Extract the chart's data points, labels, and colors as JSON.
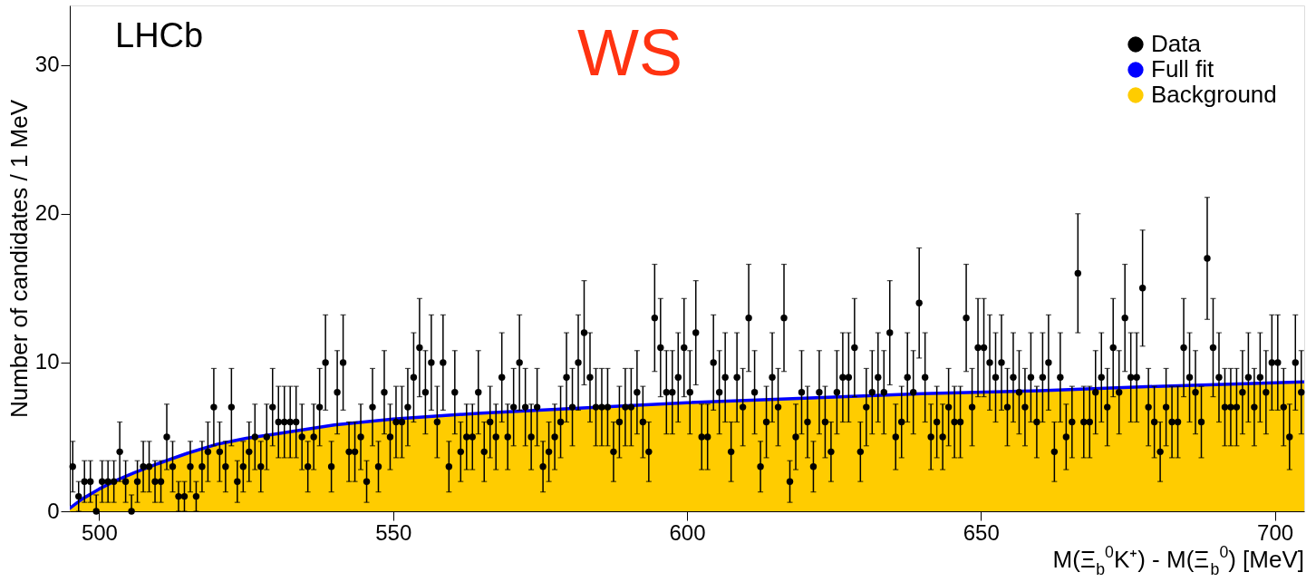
{
  "chart_data": {
    "type": "scatter",
    "xlabel": "M(Ξ$_{b}$$^{0}$K⁺) - M(Ξ$_{b}$$^{0}$) [MeV]",
    "ylabel": "Number of candidates / 1 MeV",
    "annotations": [
      "LHCb",
      "WS"
    ],
    "xlim": [
      495,
      705
    ],
    "xticks": [
      500,
      550,
      600,
      650,
      700
    ],
    "ylim": [
      0,
      34
    ],
    "yticks": [
      0,
      10,
      20,
      30
    ],
    "grid": false,
    "legend": "top right",
    "series": [
      {
        "name": "Data",
        "color": "#000000",
        "marker": "circle",
        "x": [
          495.5,
          496.5,
          497.5,
          498.5,
          499.5,
          500.5,
          501.5,
          502.5,
          503.5,
          504.5,
          505.5,
          506.5,
          507.5,
          508.5,
          509.5,
          510.5,
          511.5,
          512.5,
          513.5,
          514.5,
          515.5,
          516.5,
          517.5,
          518.5,
          519.5,
          520.5,
          521.5,
          522.5,
          523.5,
          524.5,
          525.5,
          526.5,
          527.5,
          528.5,
          529.5,
          530.5,
          531.5,
          532.5,
          533.5,
          534.5,
          535.5,
          536.5,
          537.5,
          538.5,
          539.5,
          540.5,
          541.5,
          542.5,
          543.5,
          544.5,
          545.5,
          546.5,
          547.5,
          548.5,
          549.5,
          550.5,
          551.5,
          552.5,
          553.5,
          554.5,
          555.5,
          556.5,
          557.5,
          558.5,
          559.5,
          560.5,
          561.5,
          562.5,
          563.5,
          564.5,
          565.5,
          566.5,
          567.5,
          568.5,
          569.5,
          570.5,
          571.5,
          572.5,
          573.5,
          574.5,
          575.5,
          576.5,
          577.5,
          578.5,
          579.5,
          580.5,
          581.5,
          582.5,
          583.5,
          584.5,
          585.5,
          586.5,
          587.5,
          588.5,
          589.5,
          590.5,
          591.5,
          592.5,
          593.5,
          594.5,
          595.5,
          596.5,
          597.5,
          598.5,
          599.5,
          600.5,
          601.5,
          602.5,
          603.5,
          604.5,
          605.5,
          606.5,
          607.5,
          608.5,
          609.5,
          610.5,
          611.5,
          612.5,
          613.5,
          614.5,
          615.5,
          616.5,
          617.5,
          618.5,
          619.5,
          620.5,
          621.5,
          622.5,
          623.5,
          624.5,
          625.5,
          626.5,
          627.5,
          628.5,
          629.5,
          630.5,
          631.5,
          632.5,
          633.5,
          634.5,
          635.5,
          636.5,
          637.5,
          638.5,
          639.5,
          640.5,
          641.5,
          642.5,
          643.5,
          644.5,
          645.5,
          646.5,
          647.5,
          648.5,
          649.5,
          650.5,
          651.5,
          652.5,
          653.5,
          654.5,
          655.5,
          656.5,
          657.5,
          658.5,
          659.5,
          660.5,
          661.5,
          662.5,
          663.5,
          664.5,
          665.5,
          666.5,
          667.5,
          668.5,
          669.5,
          670.5,
          671.5,
          672.5,
          673.5,
          674.5,
          675.5,
          676.5,
          677.5,
          678.5,
          679.5,
          680.5,
          681.5,
          682.5,
          683.5,
          684.5,
          685.5,
          686.5,
          687.5,
          688.5,
          689.5,
          690.5,
          691.5,
          692.5,
          693.5,
          694.5,
          695.5,
          696.5,
          697.5,
          698.5,
          699.5,
          700.5,
          701.5,
          702.5,
          703.5,
          704.5
        ],
        "values": [
          3,
          1,
          2,
          2,
          0,
          2,
          2,
          2,
          4,
          2,
          0,
          2,
          3,
          3,
          2,
          2,
          5,
          3,
          1,
          1,
          3,
          1,
          3,
          4,
          7,
          4,
          3,
          7,
          2,
          3,
          4,
          5,
          3,
          5,
          7,
          6,
          6,
          6,
          6,
          5,
          3,
          5,
          7,
          10,
          3,
          8,
          10,
          4,
          4,
          5,
          2,
          7,
          3,
          8,
          5,
          6,
          6,
          7,
          9,
          11,
          8,
          10,
          6,
          10,
          3,
          8,
          4,
          5,
          5,
          8,
          4,
          6,
          5,
          9,
          5,
          7,
          10,
          7,
          5,
          7,
          3,
          4,
          5,
          6,
          9,
          7,
          10,
          12,
          9,
          7,
          7,
          7,
          4,
          6,
          7,
          7,
          8,
          6,
          4,
          13,
          11,
          8,
          8,
          9,
          11,
          8,
          12,
          5,
          5,
          10,
          8,
          9,
          4,
          9,
          7,
          13,
          8,
          3,
          6,
          9,
          7,
          13,
          2,
          5,
          8,
          6,
          3,
          8,
          6,
          4,
          8,
          9,
          9,
          11,
          4,
          7,
          8,
          9,
          8,
          12,
          5,
          6,
          9,
          8,
          14,
          9,
          5,
          6,
          5,
          7,
          6,
          6,
          13,
          7,
          11,
          11,
          10,
          9,
          10,
          7,
          9,
          8,
          7,
          9,
          6,
          9,
          10,
          4,
          9,
          5,
          6,
          16,
          6,
          6,
          8,
          9,
          7,
          11,
          8,
          13,
          9,
          9,
          15,
          7,
          6,
          4,
          7,
          6,
          6,
          11,
          9,
          8,
          6,
          17,
          11,
          9,
          7,
          7,
          7,
          8,
          9,
          7,
          9,
          8,
          10,
          10,
          7,
          5,
          10,
          8
        ],
        "errors": [
          1.7,
          1,
          1.4,
          1.4,
          [
            0,
            1.1
          ],
          1.4,
          1.4,
          1.4,
          2,
          1.4,
          [
            0,
            1.1
          ],
          1.4,
          1.7,
          1.7,
          1.4,
          1.4,
          2.2,
          1.7,
          1,
          1,
          1.7,
          1,
          1.7,
          2,
          2.6,
          2,
          1.7,
          2.6,
          1.4,
          1.7,
          2,
          2.2,
          1.7,
          2.2,
          2.6,
          2.4,
          2.4,
          2.4,
          2.4,
          2.2,
          1.7,
          2.2,
          2.6,
          3.2,
          1.7,
          2.8,
          3.2,
          2,
          2,
          2.2,
          1.4,
          2.6,
          1.7,
          2.8,
          2.2,
          2.4,
          2.4,
          2.6,
          3,
          3.3,
          2.8,
          3.2,
          2.4,
          3.2,
          1.7,
          2.8,
          2,
          2.2,
          2.2,
          2.8,
          2,
          2.4,
          2.2,
          3,
          2.2,
          2.6,
          3.2,
          2.6,
          2.2,
          2.6,
          1.7,
          2,
          2.2,
          2.4,
          3,
          2.6,
          3.2,
          3.5,
          3,
          2.6,
          2.6,
          2.6,
          2,
          2.4,
          2.6,
          2.6,
          2.8,
          2.4,
          2,
          3.6,
          3.3,
          2.8,
          2.8,
          3,
          3.3,
          2.8,
          3.5,
          2.2,
          2.2,
          3.2,
          2.8,
          3,
          2,
          3,
          2.6,
          3.6,
          2.8,
          1.7,
          2.4,
          3,
          2.6,
          3.6,
          1.4,
          2.2,
          2.8,
          2.4,
          1.7,
          2.8,
          2.4,
          2,
          2.8,
          3,
          3,
          3.3,
          2,
          2.6,
          2.8,
          3,
          2.8,
          3.5,
          2.2,
          2.4,
          3,
          2.8,
          3.7,
          3,
          2.2,
          2.4,
          2.2,
          2.6,
          2.4,
          2.4,
          3.6,
          2.6,
          3.3,
          3.3,
          3.2,
          3,
          3.2,
          2.6,
          3,
          2.8,
          2.6,
          3,
          2.4,
          3,
          3.2,
          2,
          3,
          2.2,
          2.4,
          4,
          2.4,
          2.4,
          2.8,
          3,
          2.6,
          3.3,
          2.8,
          3.6,
          3,
          3,
          3.9,
          2.6,
          2.4,
          2,
          2.6,
          2.4,
          2.4,
          3.3,
          3,
          2.8,
          2.4,
          4.1,
          3.3,
          3,
          2.6,
          2.6,
          2.6,
          2.8,
          3,
          2.6,
          3,
          2.8,
          3.2,
          3.2,
          2.6,
          2.2,
          3.2,
          2.8
        ]
      },
      {
        "name": "Full fit",
        "type": "line",
        "line_style": "solid",
        "color": "#0000ff",
        "x": [
          495,
          497,
          500,
          503,
          506,
          510,
          515,
          520,
          525,
          530,
          540,
          550,
          565,
          580,
          600,
          620,
          640,
          660,
          680,
          705
        ],
        "values": [
          0.2,
          0.8,
          1.5,
          2.1,
          2.6,
          3.2,
          3.9,
          4.5,
          4.9,
          5.2,
          5.8,
          6.2,
          6.6,
          6.9,
          7.3,
          7.6,
          7.9,
          8.1,
          8.4,
          8.7
        ]
      },
      {
        "name": "Background",
        "type": "area",
        "color": "#ffcc00",
        "x": [
          495,
          497,
          500,
          503,
          506,
          510,
          515,
          520,
          525,
          530,
          540,
          550,
          565,
          580,
          600,
          620,
          640,
          660,
          680,
          705
        ],
        "values": [
          0.2,
          0.8,
          1.5,
          2.1,
          2.6,
          3.2,
          3.9,
          4.5,
          4.9,
          5.2,
          5.8,
          6.2,
          6.6,
          6.9,
          7.3,
          7.6,
          7.9,
          8.1,
          8.4,
          8.7
        ]
      }
    ]
  }
}
